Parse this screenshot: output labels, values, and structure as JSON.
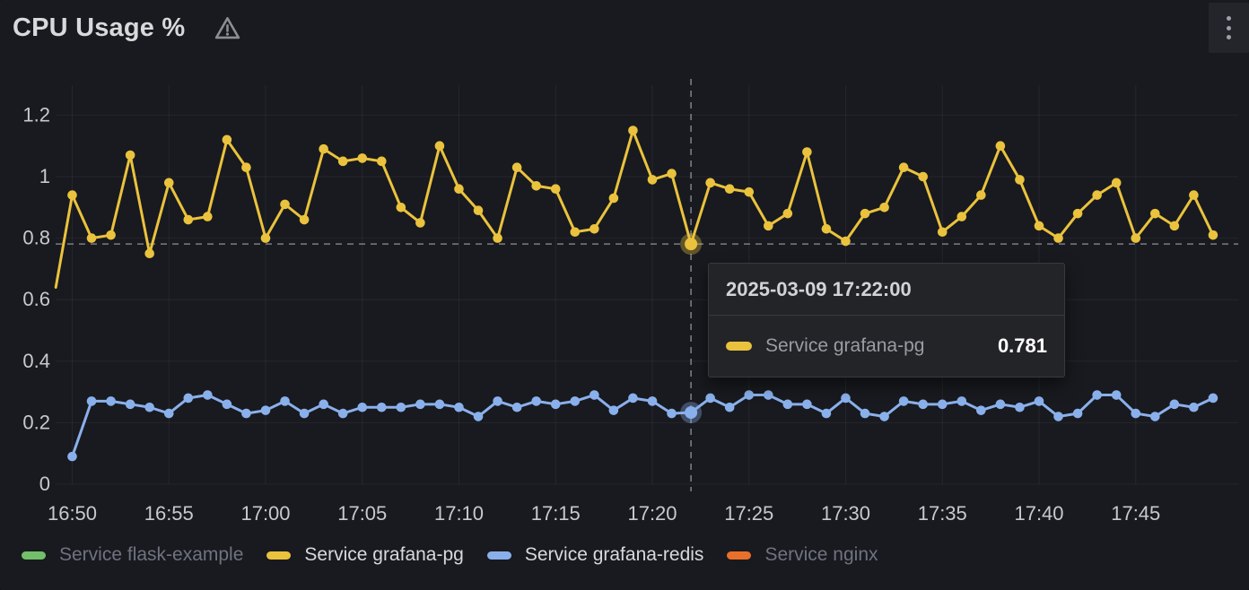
{
  "panel": {
    "title": "CPU Usage %"
  },
  "tooltip": {
    "timestamp": "2025-03-09 17:22:00",
    "series_label": "Service grafana-pg",
    "value": "0.781",
    "swatch_color": "#EAC23D"
  },
  "legend": {
    "items": [
      {
        "label": "Service flask-example",
        "color": "#73BF69",
        "active": false
      },
      {
        "label": "Service grafana-pg",
        "color": "#EAC23D",
        "active": true
      },
      {
        "label": "Service grafana-redis",
        "color": "#8AB0EC",
        "active": true
      },
      {
        "label": "Service nginx",
        "color": "#E8702A",
        "active": false
      }
    ]
  },
  "chart_data": {
    "type": "line",
    "title": "CPU Usage %",
    "x_start_time": "16:50",
    "x_step_minutes": 1,
    "x_ticks": [
      "16:50",
      "16:55",
      "17:00",
      "17:05",
      "17:10",
      "17:15",
      "17:20",
      "17:25",
      "17:30",
      "17:35",
      "17:40",
      "17:45"
    ],
    "y_ticks": [
      "0",
      "0.2",
      "0.4",
      "0.6",
      "0.8",
      "1",
      "1.2"
    ],
    "ylim": [
      0,
      1.28
    ],
    "grid": true,
    "legend_position": "bottom",
    "hover": {
      "index": 32,
      "timestamp": "2025-03-09 17:22:00",
      "series": "Service grafana-pg",
      "value": "0.781"
    },
    "series": [
      {
        "name": "Service grafana-pg",
        "color": "#EAC23D",
        "visible": true,
        "lead_in": {
          "minute": -0.85,
          "value": 0.64
        },
        "values": [
          0.94,
          0.8,
          0.81,
          1.07,
          0.75,
          0.98,
          0.86,
          0.87,
          1.12,
          1.03,
          0.8,
          0.91,
          0.86,
          1.09,
          1.05,
          1.06,
          1.05,
          0.9,
          0.85,
          1.1,
          0.96,
          0.89,
          0.8,
          1.03,
          0.97,
          0.96,
          0.82,
          0.83,
          0.93,
          1.15,
          0.99,
          1.01,
          0.781,
          0.98,
          0.96,
          0.95,
          0.84,
          0.88,
          1.08,
          0.83,
          0.79,
          0.88,
          0.9,
          1.03,
          1.0,
          0.82,
          0.87,
          0.94,
          1.1,
          0.99,
          0.84,
          0.8,
          0.88,
          0.94,
          0.98,
          0.8,
          0.88,
          0.84,
          0.94,
          0.81
        ]
      },
      {
        "name": "Service grafana-redis",
        "color": "#8AB0EC",
        "visible": true,
        "values": [
          0.09,
          0.27,
          0.27,
          0.26,
          0.25,
          0.23,
          0.28,
          0.29,
          0.26,
          0.23,
          0.24,
          0.27,
          0.23,
          0.26,
          0.23,
          0.25,
          0.25,
          0.25,
          0.26,
          0.26,
          0.25,
          0.22,
          0.27,
          0.25,
          0.27,
          0.26,
          0.27,
          0.29,
          0.24,
          0.28,
          0.27,
          0.23,
          0.233,
          0.28,
          0.25,
          0.29,
          0.29,
          0.26,
          0.26,
          0.23,
          0.28,
          0.23,
          0.22,
          0.27,
          0.26,
          0.26,
          0.27,
          0.24,
          0.26,
          0.25,
          0.27,
          0.22,
          0.23,
          0.29,
          0.29,
          0.23,
          0.22,
          0.26,
          0.25,
          0.28
        ]
      },
      {
        "name": "Service flask-example",
        "color": "#73BF69",
        "visible": false,
        "values": []
      },
      {
        "name": "Service nginx",
        "color": "#E8702A",
        "visible": false,
        "values": []
      }
    ]
  }
}
